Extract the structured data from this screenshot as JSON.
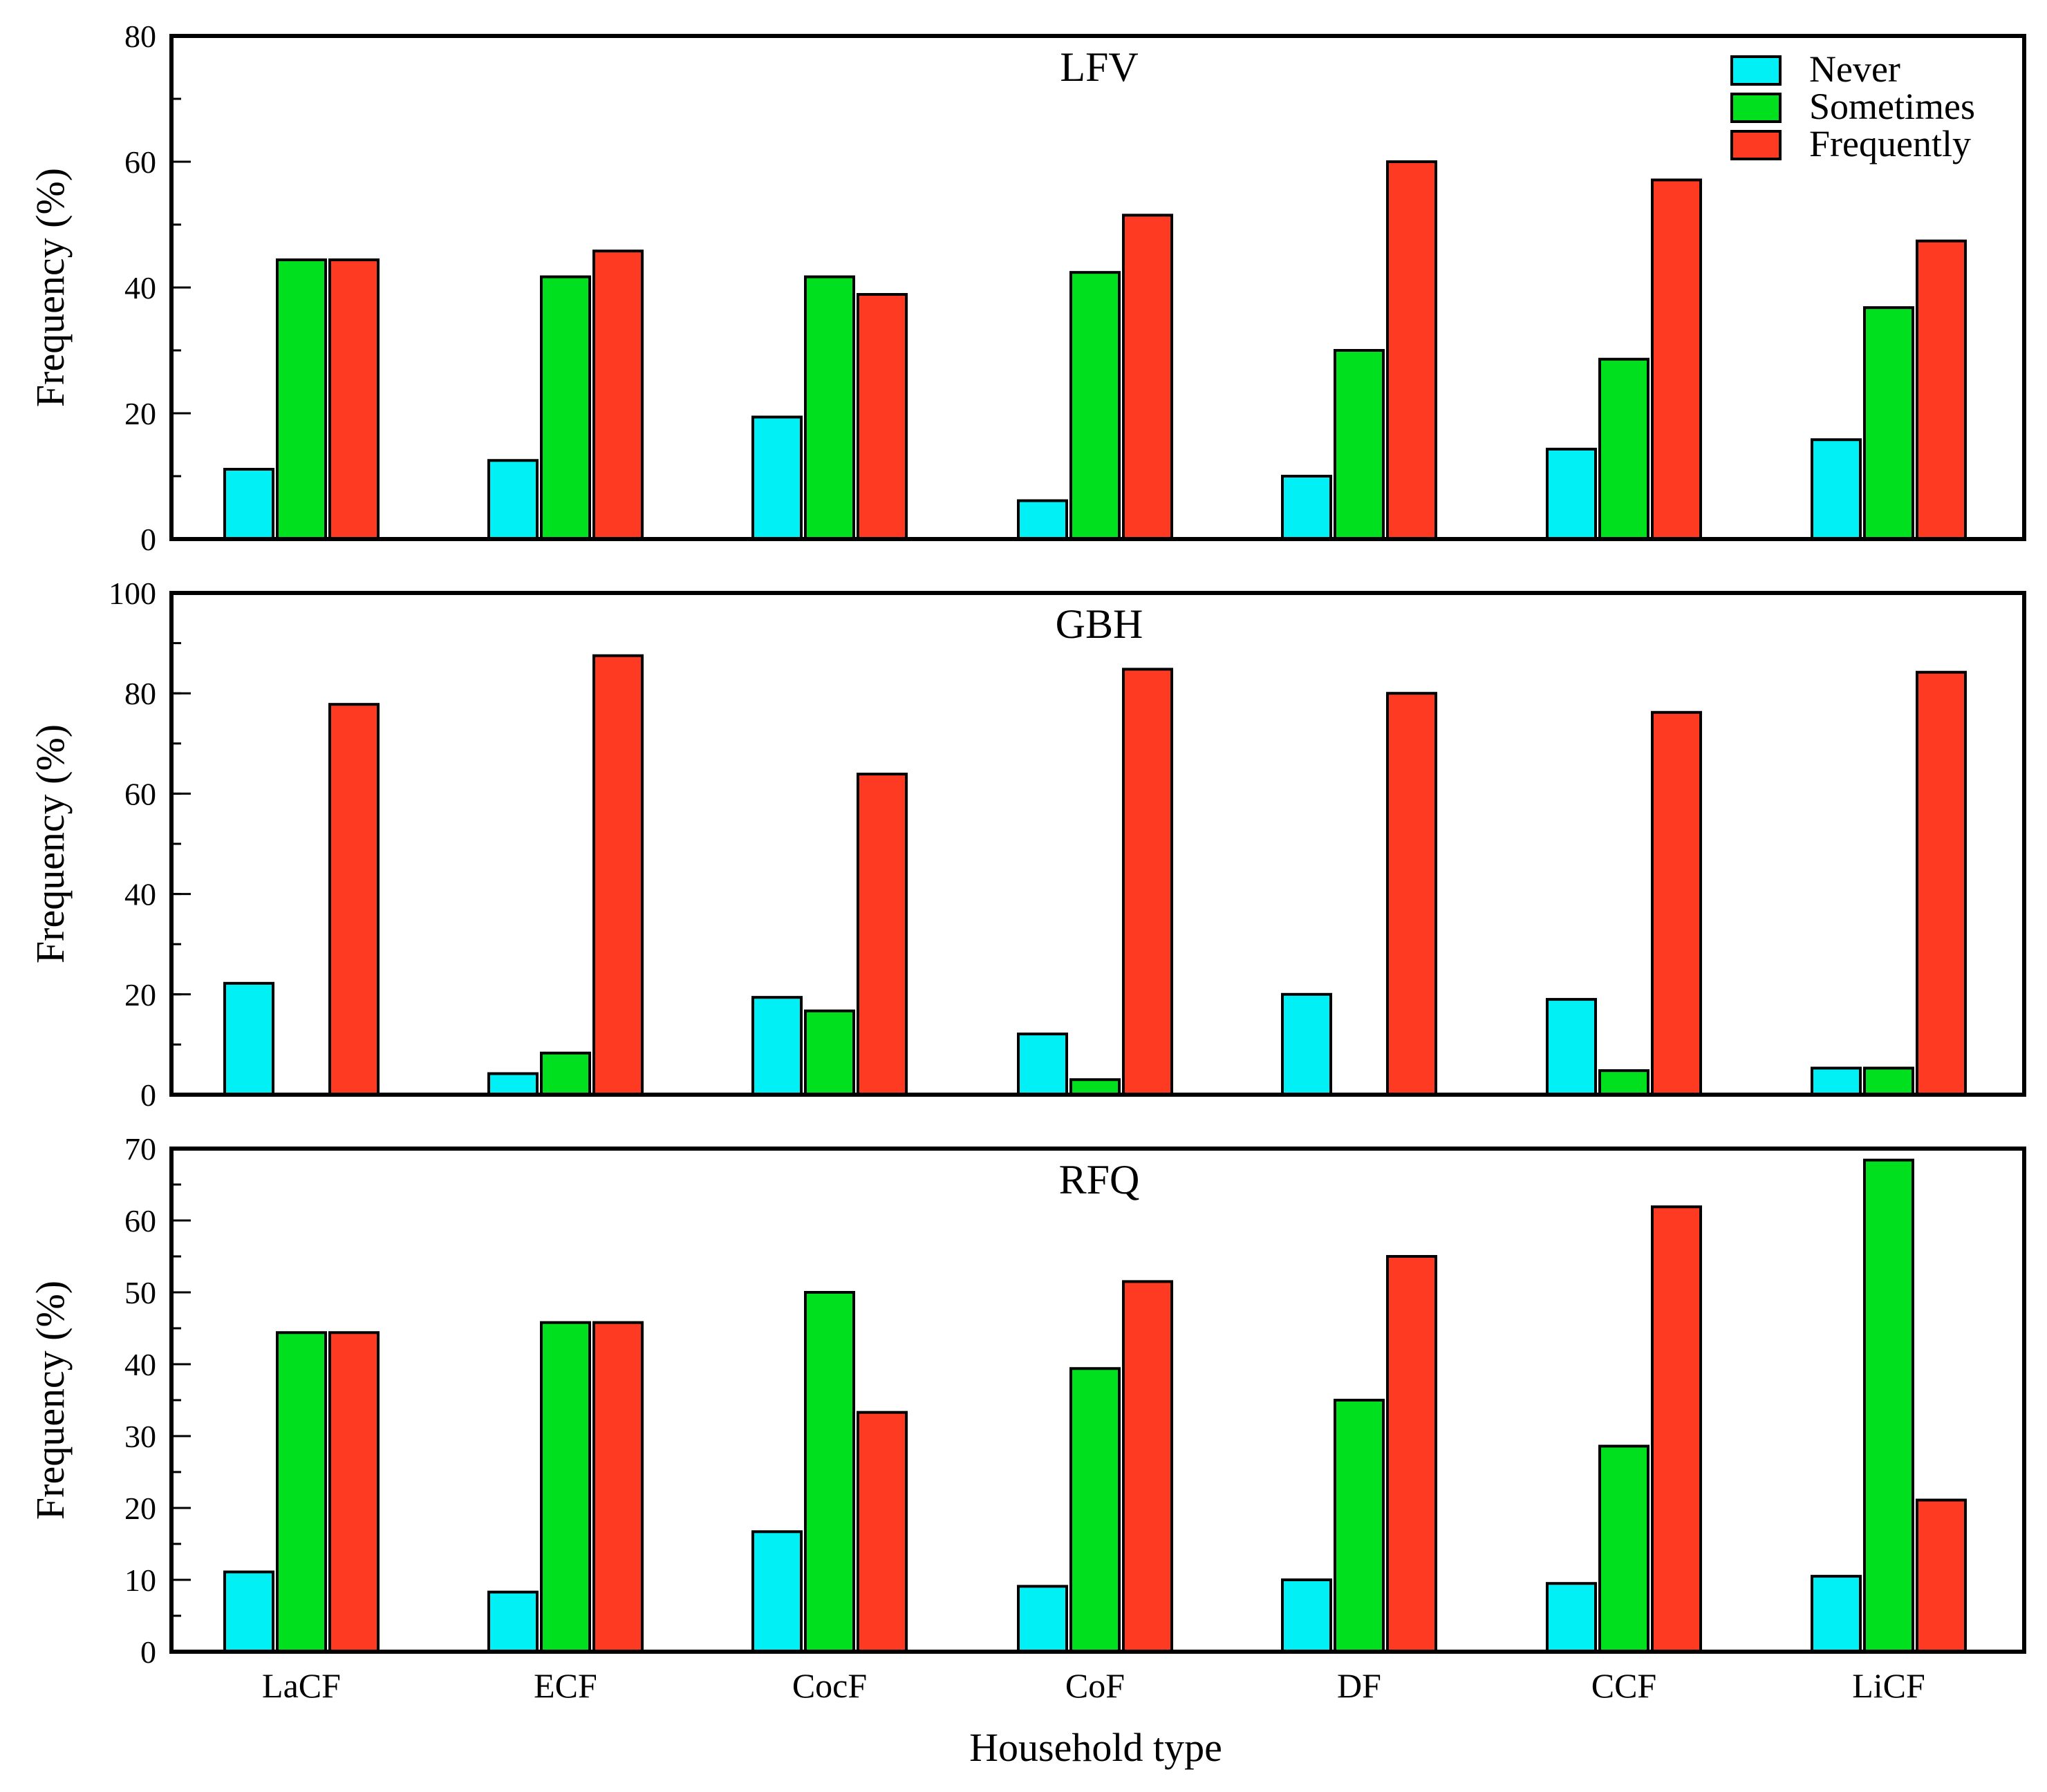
{
  "chart_data": {
    "type": "bar",
    "xlabel": "Household type",
    "ylabel": "Frequency (%)",
    "categories": [
      "LaCF",
      "ECF",
      "CocF",
      "CoF",
      "DF",
      "CCF",
      "LiCF"
    ],
    "legend": {
      "position": "top-right",
      "entries": [
        "Never",
        "Sometimes",
        "Frequently"
      ]
    },
    "colors": {
      "Never": "#00f0f5",
      "Sometimes": "#00e01e",
      "Frequently": "#ff3a22"
    },
    "panels": [
      {
        "title": "LFV",
        "ylim": [
          0,
          80
        ],
        "yticks": [
          0,
          20,
          40,
          60,
          80
        ],
        "minor_step": 10,
        "series": [
          {
            "name": "Never",
            "values": [
              11.1,
              12.5,
              19.4,
              6.1,
              10.0,
              14.3,
              15.8
            ]
          },
          {
            "name": "Sometimes",
            "values": [
              44.4,
              41.7,
              41.7,
              42.4,
              30.0,
              28.6,
              36.8
            ]
          },
          {
            "name": "Frequently",
            "values": [
              44.4,
              45.8,
              38.9,
              51.5,
              60.0,
              57.1,
              47.4
            ]
          }
        ]
      },
      {
        "title": "GBH",
        "ylim": [
          0,
          100
        ],
        "yticks": [
          0,
          20,
          40,
          60,
          80,
          100
        ],
        "minor_step": 10,
        "series": [
          {
            "name": "Never",
            "values": [
              22.2,
              4.2,
              19.4,
              12.1,
              20.0,
              19.0,
              5.3
            ]
          },
          {
            "name": "Sometimes",
            "values": [
              0,
              8.3,
              16.7,
              3.0,
              0,
              4.8,
              5.3
            ]
          },
          {
            "name": "Frequently",
            "values": [
              77.8,
              87.5,
              63.9,
              84.8,
              80.0,
              76.2,
              84.2
            ]
          }
        ]
      },
      {
        "title": "RFQ",
        "ylim": [
          0,
          70
        ],
        "yticks": [
          0,
          10,
          20,
          30,
          40,
          50,
          60,
          70
        ],
        "minor_step": 5,
        "series": [
          {
            "name": "Never",
            "values": [
              11.1,
              8.3,
              16.7,
              9.1,
              10.0,
              9.5,
              10.5
            ]
          },
          {
            "name": "Sometimes",
            "values": [
              44.4,
              45.8,
              50.0,
              39.4,
              35.0,
              28.6,
              68.4
            ]
          },
          {
            "name": "Frequently",
            "values": [
              44.4,
              45.8,
              33.3,
              51.5,
              55.0,
              61.9,
              21.1
            ]
          }
        ]
      }
    ]
  }
}
